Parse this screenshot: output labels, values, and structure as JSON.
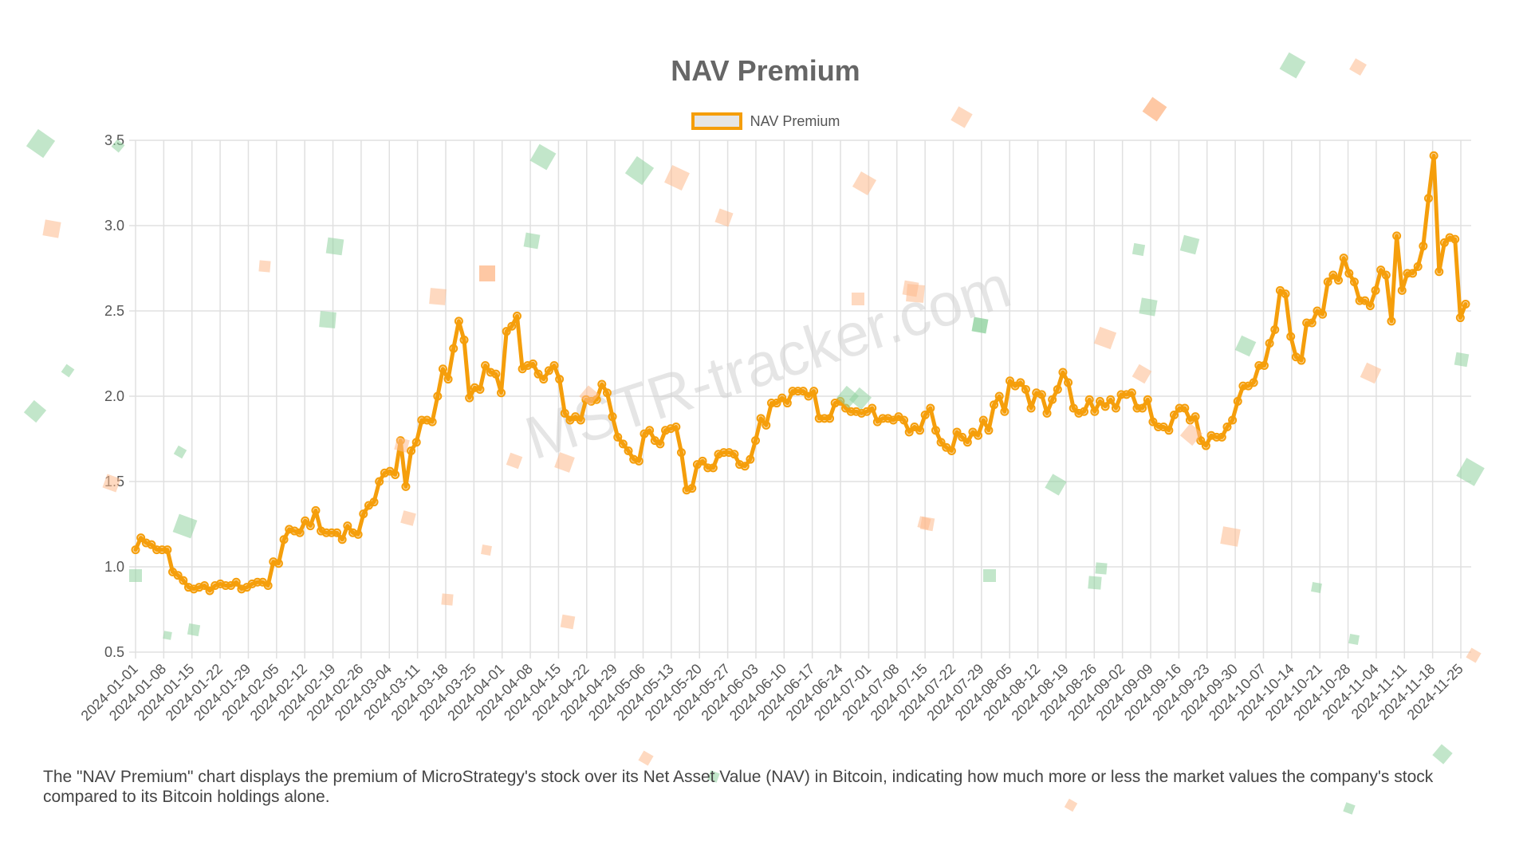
{
  "chart_data": {
    "type": "line",
    "title": "NAV Premium",
    "xlabel": "",
    "ylabel": "",
    "ylim": [
      0.5,
      3.5
    ],
    "y_ticks": [
      "3.5",
      "3.0",
      "2.5",
      "2.0",
      "1.5",
      "1.0",
      "0.5"
    ],
    "y_tick_values": [
      3.5,
      3.0,
      2.5,
      2.0,
      1.5,
      1.0,
      0.5
    ],
    "grid": true,
    "legend_position": "top-center",
    "x_ticks": [
      "2024-01-01",
      "2024-01-08",
      "2024-01-15",
      "2024-01-22",
      "2024-01-29",
      "2024-02-05",
      "2024-02-12",
      "2024-02-19",
      "2024-02-26",
      "2024-03-04",
      "2024-03-11",
      "2024-03-18",
      "2024-03-25",
      "2024-04-01",
      "2024-04-08",
      "2024-04-15",
      "2024-04-22",
      "2024-04-29",
      "2024-05-06",
      "2024-05-13",
      "2024-05-20",
      "2024-05-27",
      "2024-06-03",
      "2024-06-10",
      "2024-06-17",
      "2024-06-24",
      "2024-07-01",
      "2024-07-08",
      "2024-07-15",
      "2024-07-22",
      "2024-07-29",
      "2024-08-05",
      "2024-08-12",
      "2024-08-19",
      "2024-08-26",
      "2024-09-02",
      "2024-09-09",
      "2024-09-16",
      "2024-09-23",
      "2024-09-30",
      "2024-10-07",
      "2024-10-14",
      "2024-10-21",
      "2024-10-28",
      "2024-11-04",
      "2024-11-11",
      "2024-11-18",
      "2024-11-25"
    ],
    "series": [
      {
        "name": "NAV Premium",
        "color": "#f59e0b",
        "values": [
          1.1,
          1.17,
          1.14,
          1.13,
          1.1,
          1.1,
          1.1,
          0.97,
          0.95,
          0.92,
          0.88,
          0.87,
          0.88,
          0.89,
          0.86,
          0.89,
          0.9,
          0.89,
          0.89,
          0.91,
          0.87,
          0.88,
          0.9,
          0.91,
          0.91,
          0.89,
          1.03,
          1.02,
          1.16,
          1.22,
          1.21,
          1.2,
          1.27,
          1.24,
          1.33,
          1.21,
          1.2,
          1.2,
          1.2,
          1.16,
          1.24,
          1.2,
          1.19,
          1.31,
          1.36,
          1.38,
          1.5,
          1.55,
          1.56,
          1.54,
          1.74,
          1.47,
          1.68,
          1.73,
          1.86,
          1.86,
          1.85,
          2.0,
          2.16,
          2.1,
          2.28,
          2.44,
          2.33,
          1.99,
          2.05,
          2.04,
          2.18,
          2.14,
          2.13,
          2.02,
          2.38,
          2.41,
          2.47,
          2.16,
          2.18,
          2.19,
          2.13,
          2.1,
          2.15,
          2.18,
          2.1,
          1.9,
          1.86,
          1.88,
          1.86,
          1.98,
          1.97,
          1.98,
          2.07,
          2.02,
          1.88,
          1.76,
          1.72,
          1.68,
          1.63,
          1.62,
          1.78,
          1.8,
          1.74,
          1.72,
          1.8,
          1.81,
          1.82,
          1.67,
          1.45,
          1.46,
          1.6,
          1.62,
          1.58,
          1.58,
          1.66,
          1.67,
          1.67,
          1.66,
          1.6,
          1.59,
          1.63,
          1.74,
          1.87,
          1.83,
          1.96,
          1.96,
          1.99,
          1.96,
          2.03,
          2.03,
          2.03,
          2.0,
          2.03,
          1.87,
          1.87,
          1.87,
          1.96,
          1.97,
          1.93,
          1.91,
          1.91,
          1.9,
          1.91,
          1.93,
          1.85,
          1.87,
          1.87,
          1.86,
          1.88,
          1.86,
          1.79,
          1.82,
          1.8,
          1.89,
          1.93,
          1.8,
          1.73,
          1.7,
          1.68,
          1.79,
          1.76,
          1.73,
          1.79,
          1.77,
          1.86,
          1.8,
          1.95,
          2.0,
          1.91,
          2.09,
          2.06,
          2.08,
          2.04,
          1.93,
          2.02,
          2.01,
          1.9,
          1.98,
          2.04,
          2.14,
          2.08,
          1.93,
          1.9,
          1.91,
          1.98,
          1.91,
          1.97,
          1.94,
          1.98,
          1.93,
          2.01,
          2.01,
          2.02,
          1.93,
          1.93,
          1.98,
          1.85,
          1.82,
          1.82,
          1.8,
          1.89,
          1.93,
          1.93,
          1.86,
          1.88,
          1.74,
          1.71,
          1.77,
          1.76,
          1.76,
          1.82,
          1.86,
          1.97,
          2.06,
          2.06,
          2.08,
          2.18,
          2.18,
          2.31,
          2.39,
          2.62,
          2.6,
          2.35,
          2.23,
          2.21,
          2.43,
          2.43,
          2.5,
          2.48,
          2.67,
          2.71,
          2.68,
          2.81,
          2.72,
          2.67,
          2.56,
          2.56,
          2.53,
          2.62,
          2.74,
          2.71,
          2.44,
          2.94,
          2.62,
          2.72,
          2.72,
          2.76,
          2.88,
          3.16,
          3.41,
          2.73,
          2.9,
          2.93,
          2.92,
          2.46,
          2.54
        ]
      }
    ]
  },
  "legend": {
    "label": "NAV Premium"
  },
  "watermark": "MSTR-tracker.com",
  "caption": "The \"NAV Premium\" chart displays the premium of MicroStrategy's stock over its Net Asset Value (NAV) in Bitcoin, indicating how much more or less the market values the company's stock compared to its Bitcoin holdings alone.",
  "colors": {
    "line": "#f59e0b",
    "grid": "#e0e0e0",
    "confetti_green": "#8fd19e",
    "confetti_orange": "#fdba8c"
  }
}
